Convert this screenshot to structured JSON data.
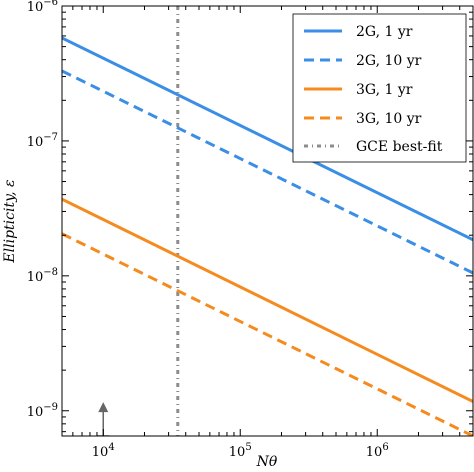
{
  "chart_data": {
    "type": "line",
    "xscale": "log",
    "yscale": "log",
    "xlim": [
      5000,
      5000000
    ],
    "ylim": [
      6.5e-10,
      1e-06
    ],
    "xlabel": "Nθ",
    "ylabel": "Ellipticity, ε",
    "x_ticks": [
      {
        "value": 10000,
        "base": "10",
        "exp": "4"
      },
      {
        "value": 100000,
        "base": "10",
        "exp": "5"
      },
      {
        "value": 1000000,
        "base": "10",
        "exp": "6"
      }
    ],
    "y_ticks": [
      {
        "value": 1e-09,
        "base": "10",
        "exp": "−9"
      },
      {
        "value": 1e-08,
        "base": "10",
        "exp": "−8"
      },
      {
        "value": 1e-07,
        "base": "10",
        "exp": "−7"
      },
      {
        "value": 1e-06,
        "base": "10",
        "exp": "−6"
      }
    ],
    "series": [
      {
        "name": "2G, 1 yr",
        "color": "#3b8ee6",
        "dash": "solid",
        "x": [
          5000,
          5000000
        ],
        "y": [
          5.8e-07,
          1.85e-08
        ]
      },
      {
        "name": "2G, 10 yr",
        "color": "#3b8ee6",
        "dash": "dashed",
        "x": [
          5000,
          5000000
        ],
        "y": [
          3.3e-07,
          1.05e-08
        ]
      },
      {
        "name": "3G, 1 yr",
        "color": "#f58b1f",
        "dash": "solid",
        "x": [
          5000,
          5000000
        ],
        "y": [
          3.7e-08,
          1.17e-09
        ]
      },
      {
        "name": "3G, 10 yr",
        "color": "#f58b1f",
        "dash": "dashed",
        "x": [
          5000,
          5000000
        ],
        "y": [
          2.05e-08,
          6.5e-10
        ]
      }
    ],
    "vline": {
      "name": "GCE best-fit",
      "x": 35000,
      "color": "#8c8c8c",
      "dash": "dashdot"
    },
    "arrow_marker": {
      "x": 10000,
      "y_from": 6.5e-10,
      "y_to": 1.1e-09,
      "color": "#666666"
    },
    "legend": {
      "placement": "top-right"
    },
    "grid": false
  }
}
